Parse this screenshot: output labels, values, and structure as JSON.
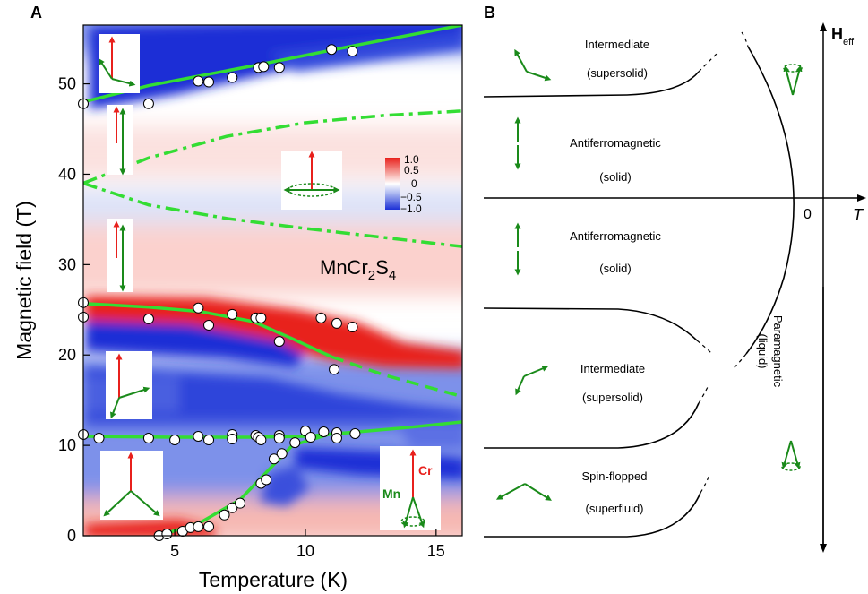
{
  "panel_a": {
    "label": "A",
    "compound": "MnCr2S4",
    "compound_main": "MnCr",
    "compound_sub1": "2",
    "compound_s": "S",
    "compound_sub2": "4",
    "colorbar_ticks": [
      "1.0",
      "0.5",
      "0",
      "−0.5",
      "−1.0"
    ],
    "moment_labels": {
      "cr": "Cr",
      "mn": "Mn"
    }
  },
  "panel_b": {
    "label": "B",
    "phases": [
      {
        "name": "Intermediate",
        "state": "(supersolid)"
      },
      {
        "name": "Antiferromagnetic",
        "state": "(solid)"
      },
      {
        "name": "Antiferromagnetic",
        "state": "(solid)"
      },
      {
        "name": "Intermediate",
        "state": "(supersolid)"
      },
      {
        "name": "Spin-flopped",
        "state": "(superfluid)"
      }
    ],
    "paramagnetic": {
      "name": "Paramagnetic",
      "state": "(liquid)"
    },
    "axis_h": "H",
    "axis_h_sub": "eff",
    "axis_t": "T",
    "origin": "0"
  },
  "colors": {
    "positive": "#e8201c",
    "negative": "#1b2fd6",
    "line": "#33dd33",
    "moment_cr": "#e8201c",
    "moment_mn": "#1a8a1a"
  },
  "chart_data": {
    "type": "heatmap",
    "xlabel": "Temperature (K)",
    "ylabel": "Magnetic field (T)",
    "xlim": [
      1.5,
      16
    ],
    "ylim": [
      0,
      56.5
    ],
    "x_ticks": [
      5,
      10,
      15
    ],
    "y_ticks": [
      0,
      10,
      20,
      30,
      40,
      50
    ],
    "colorbar_range": [
      -1.0,
      1.0
    ],
    "points": [
      [
        1.5,
        47.8
      ],
      [
        4.0,
        47.8
      ],
      [
        5.9,
        50.3
      ],
      [
        6.3,
        50.2
      ],
      [
        7.2,
        50.7
      ],
      [
        8.2,
        51.8
      ],
      [
        8.4,
        51.9
      ],
      [
        9.0,
        51.8
      ],
      [
        11.0,
        53.8
      ],
      [
        11.8,
        53.6
      ],
      [
        1.5,
        25.8
      ],
      [
        1.5,
        24.2
      ],
      [
        4.0,
        24.0
      ],
      [
        5.9,
        25.2
      ],
      [
        6.3,
        23.3
      ],
      [
        7.2,
        24.5
      ],
      [
        8.1,
        24.1
      ],
      [
        8.3,
        24.1
      ],
      [
        9.0,
        21.5
      ],
      [
        10.6,
        24.1
      ],
      [
        11.2,
        23.5
      ],
      [
        11.8,
        23.1
      ],
      [
        11.1,
        18.4
      ],
      [
        1.5,
        11.2
      ],
      [
        2.1,
        10.8
      ],
      [
        4.0,
        10.8
      ],
      [
        5.0,
        10.6
      ],
      [
        5.9,
        11.0
      ],
      [
        6.3,
        10.6
      ],
      [
        7.2,
        11.2
      ],
      [
        7.2,
        10.7
      ],
      [
        8.1,
        11.1
      ],
      [
        8.2,
        10.9
      ],
      [
        8.3,
        10.6
      ],
      [
        9.0,
        11.1
      ],
      [
        9.0,
        10.8
      ],
      [
        10.0,
        11.6
      ],
      [
        10.2,
        10.9
      ],
      [
        10.7,
        11.5
      ],
      [
        11.2,
        11.4
      ],
      [
        11.2,
        10.8
      ],
      [
        11.9,
        11.3
      ],
      [
        4.4,
        0.0
      ],
      [
        4.7,
        0.2
      ],
      [
        5.3,
        0.5
      ],
      [
        5.6,
        0.9
      ],
      [
        5.9,
        1.0
      ],
      [
        6.3,
        1.0
      ],
      [
        6.9,
        2.3
      ],
      [
        7.2,
        3.1
      ],
      [
        7.5,
        3.6
      ],
      [
        8.3,
        5.8
      ],
      [
        8.5,
        6.2
      ],
      [
        8.8,
        8.5
      ],
      [
        9.1,
        9.1
      ],
      [
        9.6,
        10.3
      ]
    ],
    "boundary_lines": [
      {
        "style": "solid",
        "points": [
          [
            1.5,
            48.0
          ],
          [
            4,
            49.8
          ],
          [
            8,
            52.0
          ],
          [
            12,
            54.3
          ],
          [
            16,
            56.5
          ]
        ]
      },
      {
        "style": "dash-dot",
        "points": [
          [
            1.5,
            39.0
          ],
          [
            4,
            41.8
          ],
          [
            7,
            44.2
          ],
          [
            10,
            45.7
          ],
          [
            13,
            46.5
          ],
          [
            16,
            47.0
          ]
        ]
      },
      {
        "style": "dash-dot",
        "points": [
          [
            1.5,
            39.0
          ],
          [
            4,
            36.6
          ],
          [
            7,
            35.1
          ],
          [
            10,
            34.0
          ],
          [
            13,
            33.0
          ],
          [
            16,
            32.0
          ]
        ]
      },
      {
        "style": "solid",
        "points": [
          [
            1.5,
            25.7
          ],
          [
            4,
            25.3
          ],
          [
            6,
            24.8
          ],
          [
            8,
            23.7
          ],
          [
            9.5,
            21.8
          ],
          [
            11,
            19.8
          ]
        ]
      },
      {
        "style": "dashed",
        "points": [
          [
            11,
            19.8
          ],
          [
            13,
            17.8
          ],
          [
            16,
            15.4
          ]
        ]
      },
      {
        "style": "solid",
        "points": [
          [
            1.5,
            11.0
          ],
          [
            5,
            10.9
          ],
          [
            8,
            10.9
          ],
          [
            10,
            11.0
          ],
          [
            12,
            11.5
          ],
          [
            14,
            12.0
          ],
          [
            16,
            12.6
          ]
        ]
      },
      {
        "style": "solid",
        "points": [
          [
            4.4,
            0.0
          ],
          [
            6,
            1.5
          ],
          [
            7.5,
            4.0
          ],
          [
            8.5,
            7.0
          ],
          [
            9.5,
            10.0
          ],
          [
            11,
            11.3
          ]
        ]
      }
    ]
  }
}
